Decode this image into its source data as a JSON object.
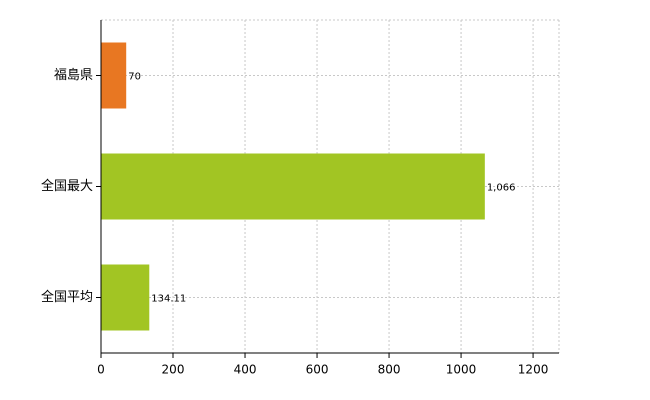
{
  "chart_data": {
    "type": "bar",
    "orientation": "horizontal",
    "categories": [
      "福島県",
      "全国最大",
      "全国平均"
    ],
    "values": [
      70,
      1066,
      134.11
    ],
    "value_labels": [
      "70",
      "1,066",
      "134.11"
    ],
    "colors": [
      "#e87722",
      "#a2c523",
      "#a2c523"
    ],
    "xlim": [
      0,
      1272
    ],
    "xticks": [
      0,
      200,
      400,
      600,
      800,
      1000,
      1200
    ],
    "grid": true
  }
}
